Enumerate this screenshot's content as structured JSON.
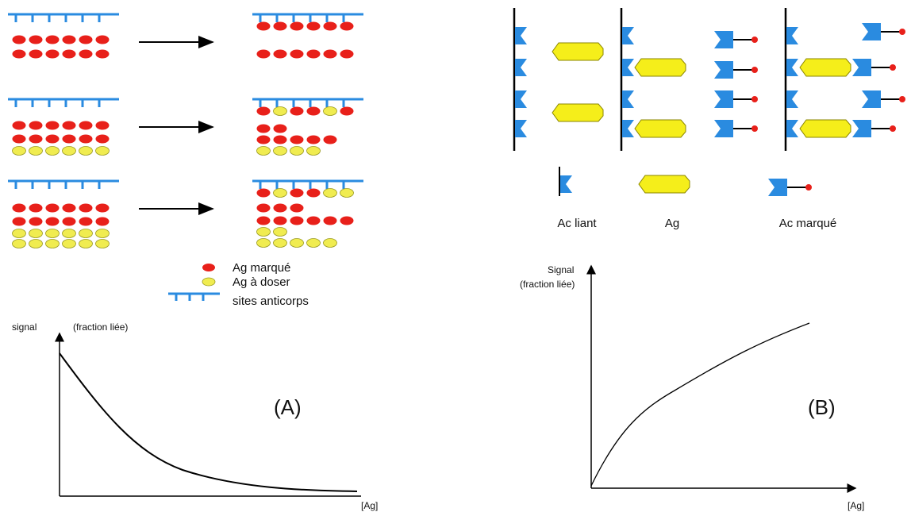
{
  "left_panel": {
    "legend": {
      "labeled_antigen": "Ag marqué",
      "antigen_to_measure": "Ag à doser",
      "antibody_sites": "sites anticorps"
    },
    "graph": {
      "y_label": "signal",
      "y_sublabel": "(fraction liée)",
      "panel_label": "(A)",
      "x_label": "[Ag]"
    }
  },
  "right_panel": {
    "legend": {
      "capture_antibody": "Ac liant",
      "antigen": "Ag",
      "labeled_antibody": "Ac marqué"
    },
    "graph": {
      "y_label": "Signal",
      "y_sublabel": "(fraction liée)",
      "panel_label": "(B)",
      "x_label": "[Ag]"
    }
  }
}
